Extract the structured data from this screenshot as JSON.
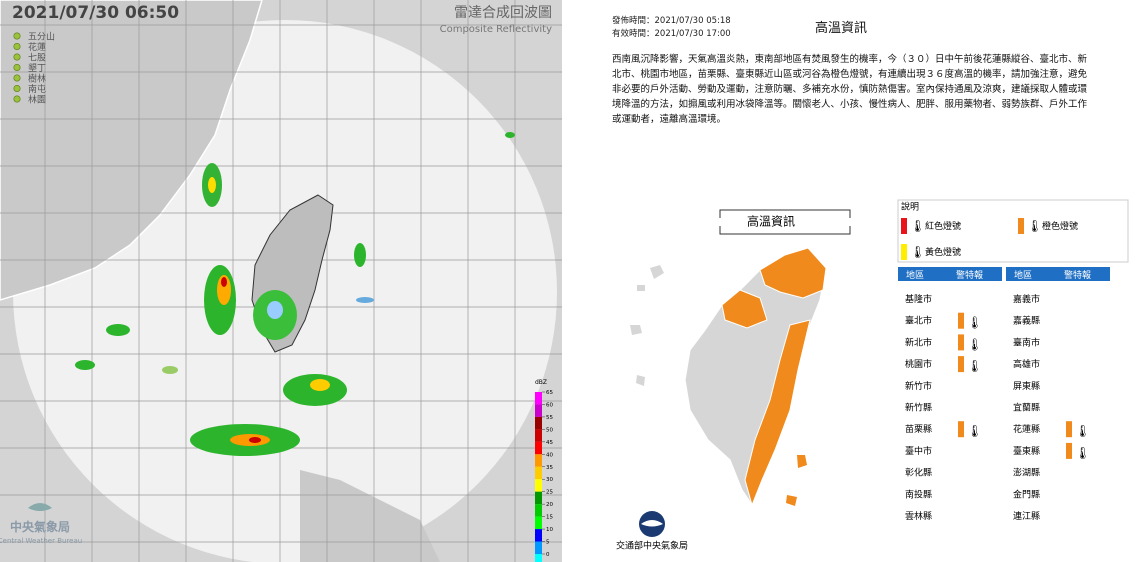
{
  "radar": {
    "timestamp": "2021/07/30  06:50",
    "title": "雷達合成回波圖",
    "subtitle": "Composite Reflectivity",
    "stations": [
      "五分山",
      "花蓮",
      "七股",
      "墾丁",
      "樹林",
      "南屯",
      "林園"
    ],
    "colorbar": {
      "unit": "dBZ",
      "ticks": [
        65,
        60,
        55,
        50,
        45,
        40,
        35,
        30,
        25,
        20,
        15,
        10,
        5,
        0
      ],
      "colors": [
        "#ff00ff",
        "#cc00cc",
        "#990000",
        "#cc0000",
        "#ff0000",
        "#ff9900",
        "#ffcc00",
        "#ffff00",
        "#009900",
        "#00cc00",
        "#00ff00",
        "#0000ff",
        "#0099ff",
        "#00ffff"
      ]
    },
    "agency": "中央氣象局",
    "agency_en": "Central Weather Bureau"
  },
  "warning": {
    "issued": "發佈時間：2021/07/30 05:18",
    "valid": "有效時間：2021/07/30 17:00",
    "title": "高溫資訊",
    "text": "西南風沉降影響，天氣高溫炎熱，東南部地區有焚風發生的機率，今（３０）日中午前後花蓮縣縱谷、臺北市、新北市、桃園市地區，苗栗縣、臺東縣近山區或河谷為橙色燈號，有連續出現３６度高溫的機率，請加強注意，避免非必要的戶外活動、勞動及運動，注意防曬、多補充水份，慎防熱傷害。室內保持通風及涼爽，建議採取人體或環境降溫的方法，如搧風或利用冰袋降溫等。關懷老人、小孩、慢性病人、肥胖、服用藥物者、弱勢族群、戶外工作或運動者，遠離高溫環境。",
    "map_title": "高溫資訊",
    "legend_title": "說明",
    "legend": [
      {
        "label": "紅色燈號",
        "color": "#e8141b"
      },
      {
        "label": "橙色燈號",
        "color": "#f08a1c"
      },
      {
        "label": "黃色燈號",
        "color": "#ffee00"
      }
    ],
    "headers": [
      "地區",
      "警特報",
      "地區",
      "警特報"
    ],
    "left": [
      {
        "area": "基隆市",
        "warning": null
      },
      {
        "area": "臺北市",
        "warning": "#f08a1c"
      },
      {
        "area": "新北市",
        "warning": "#f08a1c"
      },
      {
        "area": "桃園市",
        "warning": "#f08a1c"
      },
      {
        "area": "新竹市",
        "warning": null
      },
      {
        "area": "新竹縣",
        "warning": null
      },
      {
        "area": "苗栗縣",
        "warning": "#f08a1c"
      },
      {
        "area": "臺中市",
        "warning": null
      },
      {
        "area": "彰化縣",
        "warning": null
      },
      {
        "area": "南投縣",
        "warning": null
      },
      {
        "area": "雲林縣",
        "warning": null
      }
    ],
    "right": [
      {
        "area": "嘉義市",
        "warning": null
      },
      {
        "area": "嘉義縣",
        "warning": null
      },
      {
        "area": "臺南市",
        "warning": null
      },
      {
        "area": "高雄市",
        "warning": null
      },
      {
        "area": "屏東縣",
        "warning": null
      },
      {
        "area": "宜蘭縣",
        "warning": null
      },
      {
        "area": "花蓮縣",
        "warning": "#f08a1c"
      },
      {
        "area": "臺東縣",
        "warning": "#f08a1c"
      },
      {
        "area": "澎湖縣",
        "warning": null
      },
      {
        "area": "金門縣",
        "warning": null
      },
      {
        "area": "連江縣",
        "warning": null
      }
    ],
    "footer": "交通部中央氣象局"
  }
}
